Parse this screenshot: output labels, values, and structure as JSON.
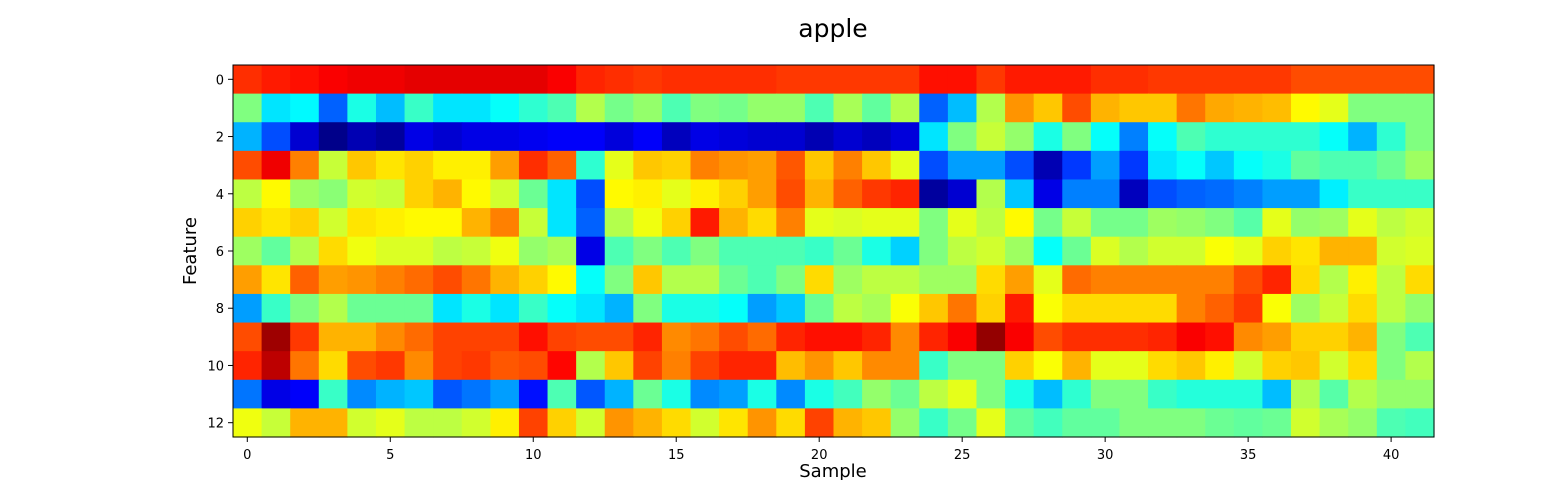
{
  "chart_data": {
    "type": "heatmap",
    "title": "apple",
    "xlabel": "Sample",
    "ylabel": "Feature",
    "xlim": [
      -0.5,
      41.5
    ],
    "ylim": [
      12.5,
      -0.5
    ],
    "x_ticks": [
      0,
      5,
      10,
      15,
      20,
      25,
      30,
      35,
      40
    ],
    "y_ticks": [
      0,
      2,
      4,
      6,
      8,
      10,
      12
    ],
    "grid": false,
    "legend": "none",
    "colormap": "jet",
    "value_range": [
      0,
      1
    ],
    "rows": 13,
    "cols": 42,
    "values": [
      [
        0.83,
        0.85,
        0.86,
        0.88,
        0.89,
        0.89,
        0.9,
        0.9,
        0.9,
        0.9,
        0.9,
        0.88,
        0.84,
        0.83,
        0.82,
        0.83,
        0.83,
        0.83,
        0.83,
        0.82,
        0.82,
        0.82,
        0.82,
        0.82,
        0.86,
        0.86,
        0.82,
        0.85,
        0.85,
        0.85,
        0.83,
        0.83,
        0.82,
        0.82,
        0.82,
        0.82,
        0.82,
        0.8,
        0.8,
        0.8,
        0.8,
        0.8
      ],
      [
        0.5,
        0.35,
        0.37,
        0.22,
        0.4,
        0.31,
        0.43,
        0.35,
        0.35,
        0.38,
        0.42,
        0.45,
        0.55,
        0.49,
        0.52,
        0.45,
        0.5,
        0.49,
        0.52,
        0.52,
        0.45,
        0.54,
        0.47,
        0.55,
        0.22,
        0.31,
        0.55,
        0.73,
        0.68,
        0.8,
        0.7,
        0.68,
        0.68,
        0.76,
        0.71,
        0.7,
        0.69,
        0.63,
        0.6,
        0.5,
        0.5,
        0.5
      ],
      [
        0.3,
        0.2,
        0.08,
        0.01,
        0.05,
        0.03,
        0.1,
        0.08,
        0.1,
        0.1,
        0.11,
        0.12,
        0.12,
        0.09,
        0.12,
        0.06,
        0.1,
        0.09,
        0.08,
        0.08,
        0.05,
        0.08,
        0.06,
        0.09,
        0.35,
        0.5,
        0.57,
        0.52,
        0.4,
        0.5,
        0.38,
        0.25,
        0.38,
        0.45,
        0.42,
        0.42,
        0.42,
        0.42,
        0.38,
        0.3,
        0.42,
        0.5
      ],
      [
        0.8,
        0.89,
        0.75,
        0.57,
        0.68,
        0.65,
        0.67,
        0.64,
        0.64,
        0.72,
        0.83,
        0.78,
        0.42,
        0.6,
        0.68,
        0.67,
        0.75,
        0.73,
        0.72,
        0.79,
        0.68,
        0.75,
        0.68,
        0.6,
        0.2,
        0.28,
        0.28,
        0.2,
        0.05,
        0.18,
        0.28,
        0.18,
        0.35,
        0.38,
        0.32,
        0.38,
        0.4,
        0.47,
        0.45,
        0.45,
        0.48,
        0.53
      ],
      [
        0.56,
        0.63,
        0.53,
        0.51,
        0.58,
        0.57,
        0.67,
        0.7,
        0.63,
        0.58,
        0.48,
        0.35,
        0.2,
        0.63,
        0.64,
        0.6,
        0.64,
        0.67,
        0.72,
        0.8,
        0.7,
        0.78,
        0.82,
        0.84,
        0.03,
        0.08,
        0.55,
        0.32,
        0.1,
        0.25,
        0.25,
        0.06,
        0.2,
        0.22,
        0.23,
        0.25,
        0.28,
        0.28,
        0.36,
        0.43,
        0.43,
        0.43
      ],
      [
        0.67,
        0.65,
        0.67,
        0.58,
        0.65,
        0.64,
        0.63,
        0.63,
        0.7,
        0.75,
        0.57,
        0.35,
        0.22,
        0.55,
        0.61,
        0.67,
        0.85,
        0.7,
        0.66,
        0.75,
        0.6,
        0.59,
        0.6,
        0.6,
        0.5,
        0.6,
        0.56,
        0.63,
        0.49,
        0.57,
        0.49,
        0.49,
        0.53,
        0.52,
        0.5,
        0.46,
        0.6,
        0.52,
        0.53,
        0.6,
        0.56,
        0.58
      ],
      [
        0.53,
        0.47,
        0.55,
        0.66,
        0.61,
        0.59,
        0.59,
        0.56,
        0.57,
        0.61,
        0.52,
        0.54,
        0.1,
        0.45,
        0.5,
        0.45,
        0.5,
        0.45,
        0.45,
        0.45,
        0.43,
        0.48,
        0.4,
        0.33,
        0.5,
        0.56,
        0.58,
        0.53,
        0.38,
        0.48,
        0.59,
        0.55,
        0.58,
        0.58,
        0.62,
        0.6,
        0.67,
        0.65,
        0.7,
        0.7,
        0.58,
        0.59
      ],
      [
        0.72,
        0.65,
        0.78,
        0.72,
        0.73,
        0.75,
        0.77,
        0.8,
        0.76,
        0.7,
        0.67,
        0.63,
        0.38,
        0.5,
        0.68,
        0.55,
        0.55,
        0.48,
        0.45,
        0.5,
        0.66,
        0.53,
        0.56,
        0.56,
        0.53,
        0.53,
        0.66,
        0.72,
        0.6,
        0.77,
        0.75,
        0.75,
        0.75,
        0.75,
        0.75,
        0.8,
        0.84,
        0.66,
        0.55,
        0.64,
        0.56,
        0.66
      ],
      [
        0.28,
        0.43,
        0.5,
        0.55,
        0.48,
        0.48,
        0.48,
        0.35,
        0.4,
        0.35,
        0.43,
        0.38,
        0.35,
        0.3,
        0.5,
        0.4,
        0.4,
        0.38,
        0.28,
        0.32,
        0.48,
        0.56,
        0.54,
        0.62,
        0.68,
        0.76,
        0.67,
        0.85,
        0.62,
        0.66,
        0.66,
        0.66,
        0.66,
        0.75,
        0.78,
        0.82,
        0.62,
        0.53,
        0.57,
        0.66,
        0.56,
        0.52
      ],
      [
        0.8,
        0.97,
        0.82,
        0.7,
        0.7,
        0.74,
        0.77,
        0.81,
        0.81,
        0.81,
        0.86,
        0.81,
        0.8,
        0.8,
        0.84,
        0.74,
        0.76,
        0.8,
        0.77,
        0.84,
        0.86,
        0.86,
        0.84,
        0.74,
        0.84,
        0.88,
        0.98,
        0.88,
        0.8,
        0.83,
        0.83,
        0.83,
        0.84,
        0.88,
        0.86,
        0.74,
        0.72,
        0.67,
        0.67,
        0.7,
        0.5,
        0.45
      ],
      [
        0.84,
        0.94,
        0.76,
        0.66,
        0.8,
        0.82,
        0.74,
        0.81,
        0.82,
        0.79,
        0.8,
        0.87,
        0.55,
        0.68,
        0.81,
        0.75,
        0.81,
        0.84,
        0.84,
        0.69,
        0.73,
        0.68,
        0.74,
        0.74,
        0.43,
        0.5,
        0.5,
        0.67,
        0.62,
        0.7,
        0.6,
        0.6,
        0.66,
        0.68,
        0.64,
        0.58,
        0.67,
        0.68,
        0.58,
        0.66,
        0.5,
        0.55
      ],
      [
        0.24,
        0.1,
        0.12,
        0.43,
        0.26,
        0.3,
        0.32,
        0.21,
        0.24,
        0.28,
        0.14,
        0.45,
        0.21,
        0.3,
        0.48,
        0.4,
        0.26,
        0.28,
        0.4,
        0.26,
        0.4,
        0.44,
        0.52,
        0.48,
        0.56,
        0.6,
        0.5,
        0.4,
        0.31,
        0.42,
        0.5,
        0.5,
        0.43,
        0.41,
        0.41,
        0.41,
        0.31,
        0.55,
        0.46,
        0.55,
        0.52,
        0.52
      ],
      [
        0.61,
        0.57,
        0.7,
        0.7,
        0.58,
        0.6,
        0.56,
        0.56,
        0.58,
        0.64,
        0.81,
        0.67,
        0.58,
        0.73,
        0.7,
        0.66,
        0.58,
        0.65,
        0.73,
        0.66,
        0.81,
        0.7,
        0.68,
        0.52,
        0.43,
        0.49,
        0.6,
        0.47,
        0.44,
        0.47,
        0.47,
        0.5,
        0.5,
        0.5,
        0.48,
        0.47,
        0.48,
        0.58,
        0.54,
        0.52,
        0.45,
        0.44
      ]
    ]
  }
}
